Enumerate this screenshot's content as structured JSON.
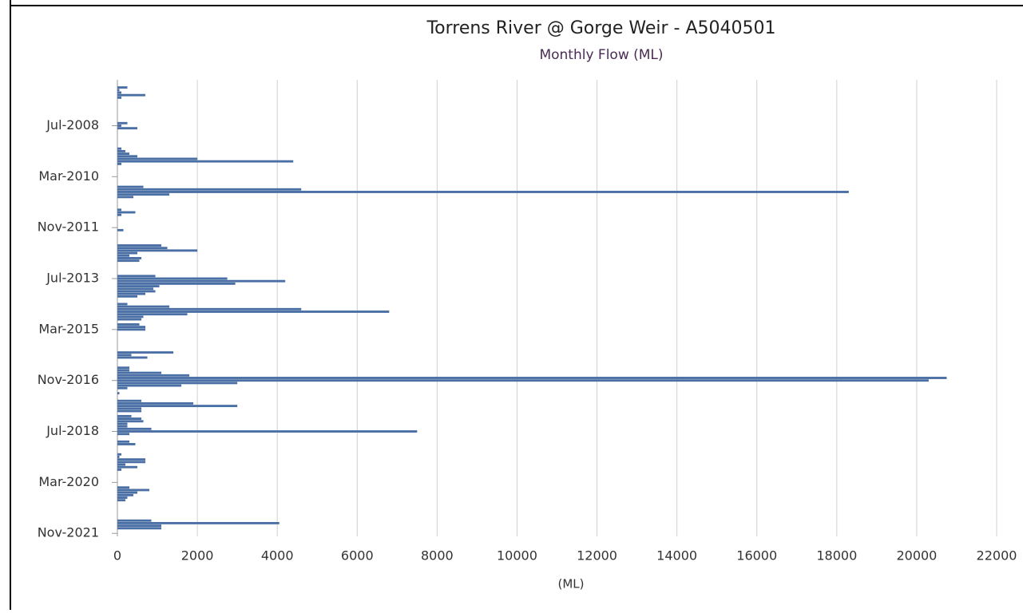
{
  "chart_data": {
    "type": "barh",
    "title": "Torrens River @ Gorge Weir - A5040501",
    "subtitle": "Monthly Flow (ML)",
    "x_label": "(ML)",
    "color": "#4a6fa5",
    "grid": true,
    "categories": [
      null,
      null,
      null,
      null,
      null,
      null,
      null,
      null,
      null,
      null,
      null,
      null,
      null,
      null,
      null,
      "Jul-2008",
      null,
      null,
      null,
      null,
      null,
      null,
      null,
      null,
      null,
      null,
      null,
      null,
      null,
      null,
      null,
      null,
      null,
      null,
      null,
      "Mar-2010",
      null,
      null,
      null,
      null,
      null,
      null,
      null,
      null,
      null,
      null,
      null,
      null,
      null,
      null,
      null,
      null,
      null,
      null,
      null,
      "Nov-2011",
      null,
      null,
      null,
      null,
      null,
      null,
      null,
      null,
      null,
      null,
      null,
      null,
      null,
      null,
      null,
      null,
      null,
      null,
      null,
      "Jul-2013",
      null,
      null,
      null,
      null,
      null,
      null,
      null,
      null,
      null,
      null,
      null,
      null,
      null,
      null,
      null,
      null,
      null,
      null,
      null,
      "Mar-2015",
      null,
      null,
      null,
      null,
      null,
      null,
      null,
      null,
      null,
      null,
      null,
      null,
      null,
      null,
      null,
      null,
      null,
      null,
      null,
      "Nov-2016",
      null,
      null,
      null,
      null,
      null,
      null,
      null,
      null,
      null,
      null,
      null,
      null,
      null,
      null,
      null,
      null,
      null,
      null,
      null,
      "Jul-2018",
      null,
      null,
      null,
      null,
      null,
      null,
      null,
      null,
      null,
      null,
      null,
      null,
      null,
      null,
      null,
      null,
      null,
      null,
      null,
      "Mar-2020",
      null,
      null,
      null,
      null,
      null,
      null,
      null,
      null,
      null,
      null,
      null,
      null,
      null,
      null,
      null,
      null,
      null,
      null,
      null,
      "Nov-2021",
      null
    ],
    "values": [
      250,
      50,
      100,
      700,
      100,
      0,
      0,
      0,
      0,
      0,
      0,
      0,
      0,
      0,
      250,
      100,
      500,
      0,
      0,
      0,
      0,
      0,
      0,
      0,
      100,
      200,
      300,
      500,
      2000,
      4400,
      100,
      0,
      0,
      0,
      0,
      0,
      0,
      0,
      0,
      650,
      4600,
      18300,
      1300,
      400,
      0,
      0,
      0,
      0,
      100,
      450,
      100,
      0,
      0,
      0,
      0,
      0,
      150,
      0,
      0,
      0,
      0,
      0,
      1100,
      1250,
      2000,
      500,
      300,
      600,
      550,
      0,
      0,
      0,
      0,
      0,
      950,
      2750,
      4200,
      2950,
      1050,
      900,
      950,
      700,
      500,
      0,
      0,
      250,
      1300,
      4600,
      6800,
      1750,
      650,
      600,
      0,
      550,
      700,
      700,
      0,
      0,
      0,
      0,
      0,
      0,
      0,
      0,
      1400,
      350,
      750,
      0,
      0,
      0,
      300,
      300,
      1100,
      1800,
      20750,
      20300,
      3000,
      1600,
      250,
      0,
      50,
      0,
      0,
      600,
      1900,
      3000,
      600,
      600,
      0,
      350,
      600,
      650,
      250,
      250,
      850,
      7500,
      300,
      0,
      0,
      300,
      450,
      0,
      0,
      0,
      100,
      50,
      700,
      700,
      200,
      500,
      100,
      0,
      0,
      0,
      0,
      0,
      0,
      300,
      800,
      500,
      400,
      250,
      200,
      0,
      0,
      0,
      0,
      0,
      0,
      0,
      850,
      4050,
      1100,
      1100,
      0,
      0,
      0
    ],
    "xlim": [
      0,
      22000
    ],
    "xticks": [
      0,
      2000,
      4000,
      6000,
      8000,
      10000,
      12000,
      14000,
      16000,
      18000,
      20000,
      22000
    ]
  }
}
